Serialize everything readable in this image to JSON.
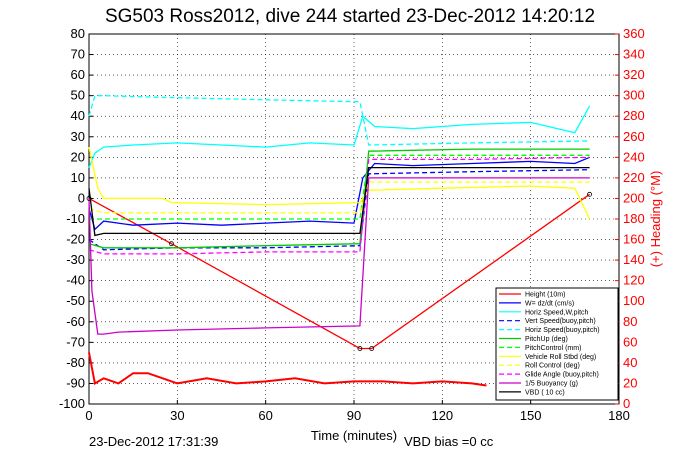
{
  "chart_data": {
    "type": "line",
    "title": "SG503 Ross2012, dive 244 started 23-Dec-2012 14:20:12",
    "xlabel": "Time (minutes)",
    "ylabel_right": "(+) Heading (°M)",
    "xlim": [
      0,
      180
    ],
    "ylim": [
      -100,
      80
    ],
    "ylim_right": [
      0,
      360
    ],
    "x_ticks": [
      "0",
      "30",
      "60",
      "90",
      "120",
      "150",
      "180"
    ],
    "y_ticks": [
      "80",
      "70",
      "60",
      "50",
      "40",
      "30",
      "20",
      "10",
      "0",
      "-10",
      "-20",
      "-30",
      "-40",
      "-50",
      "-60",
      "-70",
      "-80",
      "-90",
      "-100"
    ],
    "y_ticks_right": [
      "360",
      "340",
      "320",
      "300",
      "280",
      "260",
      "240",
      "220",
      "200",
      "180",
      "160",
      "140",
      "120",
      "100",
      "80",
      "60",
      "40",
      "20",
      "0"
    ],
    "grid": true,
    "legend_position": "bottom-right",
    "footer_left": "23-Dec-2012 17:31:39",
    "footer_bias": "VBD bias =0 cc",
    "colors": {
      "height": "#ff0000",
      "w": "#0000ff",
      "hspd": "#00ffff",
      "vspd_buoy": "#0000ff",
      "hspd_buoy": "#00ffff",
      "pitchup": "#00cc00",
      "pitchctl": "#00ff00",
      "vroll": "#ffff00",
      "rollctl": "#ffff00",
      "glide": "#ff00ff",
      "buoy": "#cc00cc",
      "vbd": "#000000",
      "heading": "#ff0000"
    },
    "series": [
      {
        "name": "Height (10m)",
        "key": "height",
        "style": "solid",
        "x": [
          0,
          28,
          92,
          96,
          170
        ],
        "y": [
          0,
          -22,
          -73,
          -73,
          2
        ]
      },
      {
        "name": "W= dz/dt (cm/s)",
        "key": "w",
        "style": "solid",
        "x": [
          0,
          2,
          5,
          15,
          30,
          45,
          60,
          75,
          90,
          93,
          97,
          110,
          130,
          150,
          165,
          170
        ],
        "y": [
          -5,
          -15,
          -11,
          -13,
          -12,
          -13,
          -12,
          -11,
          -12,
          10,
          17,
          16,
          17,
          18,
          17,
          20
        ]
      },
      {
        "name": "Horiz Speed,W,pitch",
        "key": "hspd",
        "style": "solid",
        "x": [
          0,
          2,
          5,
          15,
          30,
          45,
          60,
          75,
          90,
          93,
          97,
          110,
          130,
          150,
          165,
          170
        ],
        "y": [
          15,
          22,
          25,
          26,
          27,
          26,
          25,
          27,
          26,
          40,
          35,
          34,
          36,
          37,
          32,
          45
        ]
      },
      {
        "name": "Vert Speed(buoy,pitch)",
        "key": "vspd_buoy",
        "style": "dashed",
        "x": [
          0,
          5,
          30,
          60,
          92,
          95,
          130,
          170
        ],
        "y": [
          -20,
          -25,
          -24,
          -24,
          -23,
          12,
          13,
          14
        ]
      },
      {
        "name": "Horiz Speed(buoy,pitch)",
        "key": "hspd_buoy",
        "style": "dashed",
        "x": [
          0,
          2,
          5,
          30,
          60,
          92,
          95,
          130,
          170
        ],
        "y": [
          40,
          50,
          50,
          49,
          48,
          47,
          26,
          27,
          28
        ]
      },
      {
        "name": "PitchUp (deg)",
        "key": "pitchup",
        "style": "solid",
        "x": [
          0,
          5,
          30,
          60,
          92,
          95,
          130,
          170
        ],
        "y": [
          -22,
          -24,
          -24,
          -23,
          -22,
          23,
          24,
          24
        ]
      },
      {
        "name": "PitchControl (mm)",
        "key": "pitchctl",
        "style": "dashed",
        "x": [
          0,
          5,
          30,
          60,
          92,
          95,
          130,
          170
        ],
        "y": [
          -10,
          -10,
          -10,
          -10,
          -10,
          21,
          21,
          21
        ]
      },
      {
        "name": "Vehicle Roll Stbd (deg)",
        "key": "vroll",
        "style": "solid",
        "x": [
          0,
          3,
          5,
          25,
          28,
          60,
          92,
          95,
          120,
          150,
          165,
          170
        ],
        "y": [
          25,
          5,
          0,
          0,
          -2,
          -3,
          -2,
          4,
          5,
          6,
          5,
          -10
        ]
      },
      {
        "name": "Roll Control (deg)",
        "key": "rollctl",
        "style": "dashed",
        "x": [
          0,
          5,
          30,
          60,
          92,
          95,
          130,
          170
        ],
        "y": [
          -5,
          -7,
          -7,
          -7,
          -7,
          8,
          8,
          8
        ]
      },
      {
        "name": "Glide Angle (buoy,pitch)",
        "key": "glide",
        "style": "dashed",
        "x": [
          0,
          5,
          30,
          60,
          92,
          95,
          130,
          170
        ],
        "y": [
          -25,
          -27,
          -27,
          -26,
          -26,
          19,
          19,
          20
        ]
      },
      {
        "name": "1/5 Buoyancy (g)",
        "key": "buoy",
        "style": "solid",
        "x": [
          0,
          1,
          3,
          5,
          10,
          30,
          60,
          92,
          95,
          170
        ],
        "y": [
          0,
          -45,
          -66,
          -66,
          -65,
          -64,
          -63,
          -62,
          10,
          10
        ]
      },
      {
        "name": "VBD ( 10 cc)",
        "key": "vbd",
        "style": "solid",
        "x": [
          0,
          2,
          5,
          30,
          60,
          92,
          95,
          130,
          170
        ],
        "y": [
          5,
          -18,
          -17,
          -17,
          -17,
          -17,
          15,
          15,
          15
        ]
      }
    ],
    "heading": {
      "axis": "right",
      "x": [
        0,
        2,
        5,
        10,
        15,
        20,
        30,
        40,
        50,
        60,
        70,
        80,
        90,
        100,
        110,
        120,
        130,
        135
      ],
      "y": [
        50,
        20,
        25,
        20,
        30,
        30,
        20,
        25,
        20,
        22,
        25,
        20,
        22,
        22,
        20,
        22,
        20,
        18
      ]
    }
  }
}
